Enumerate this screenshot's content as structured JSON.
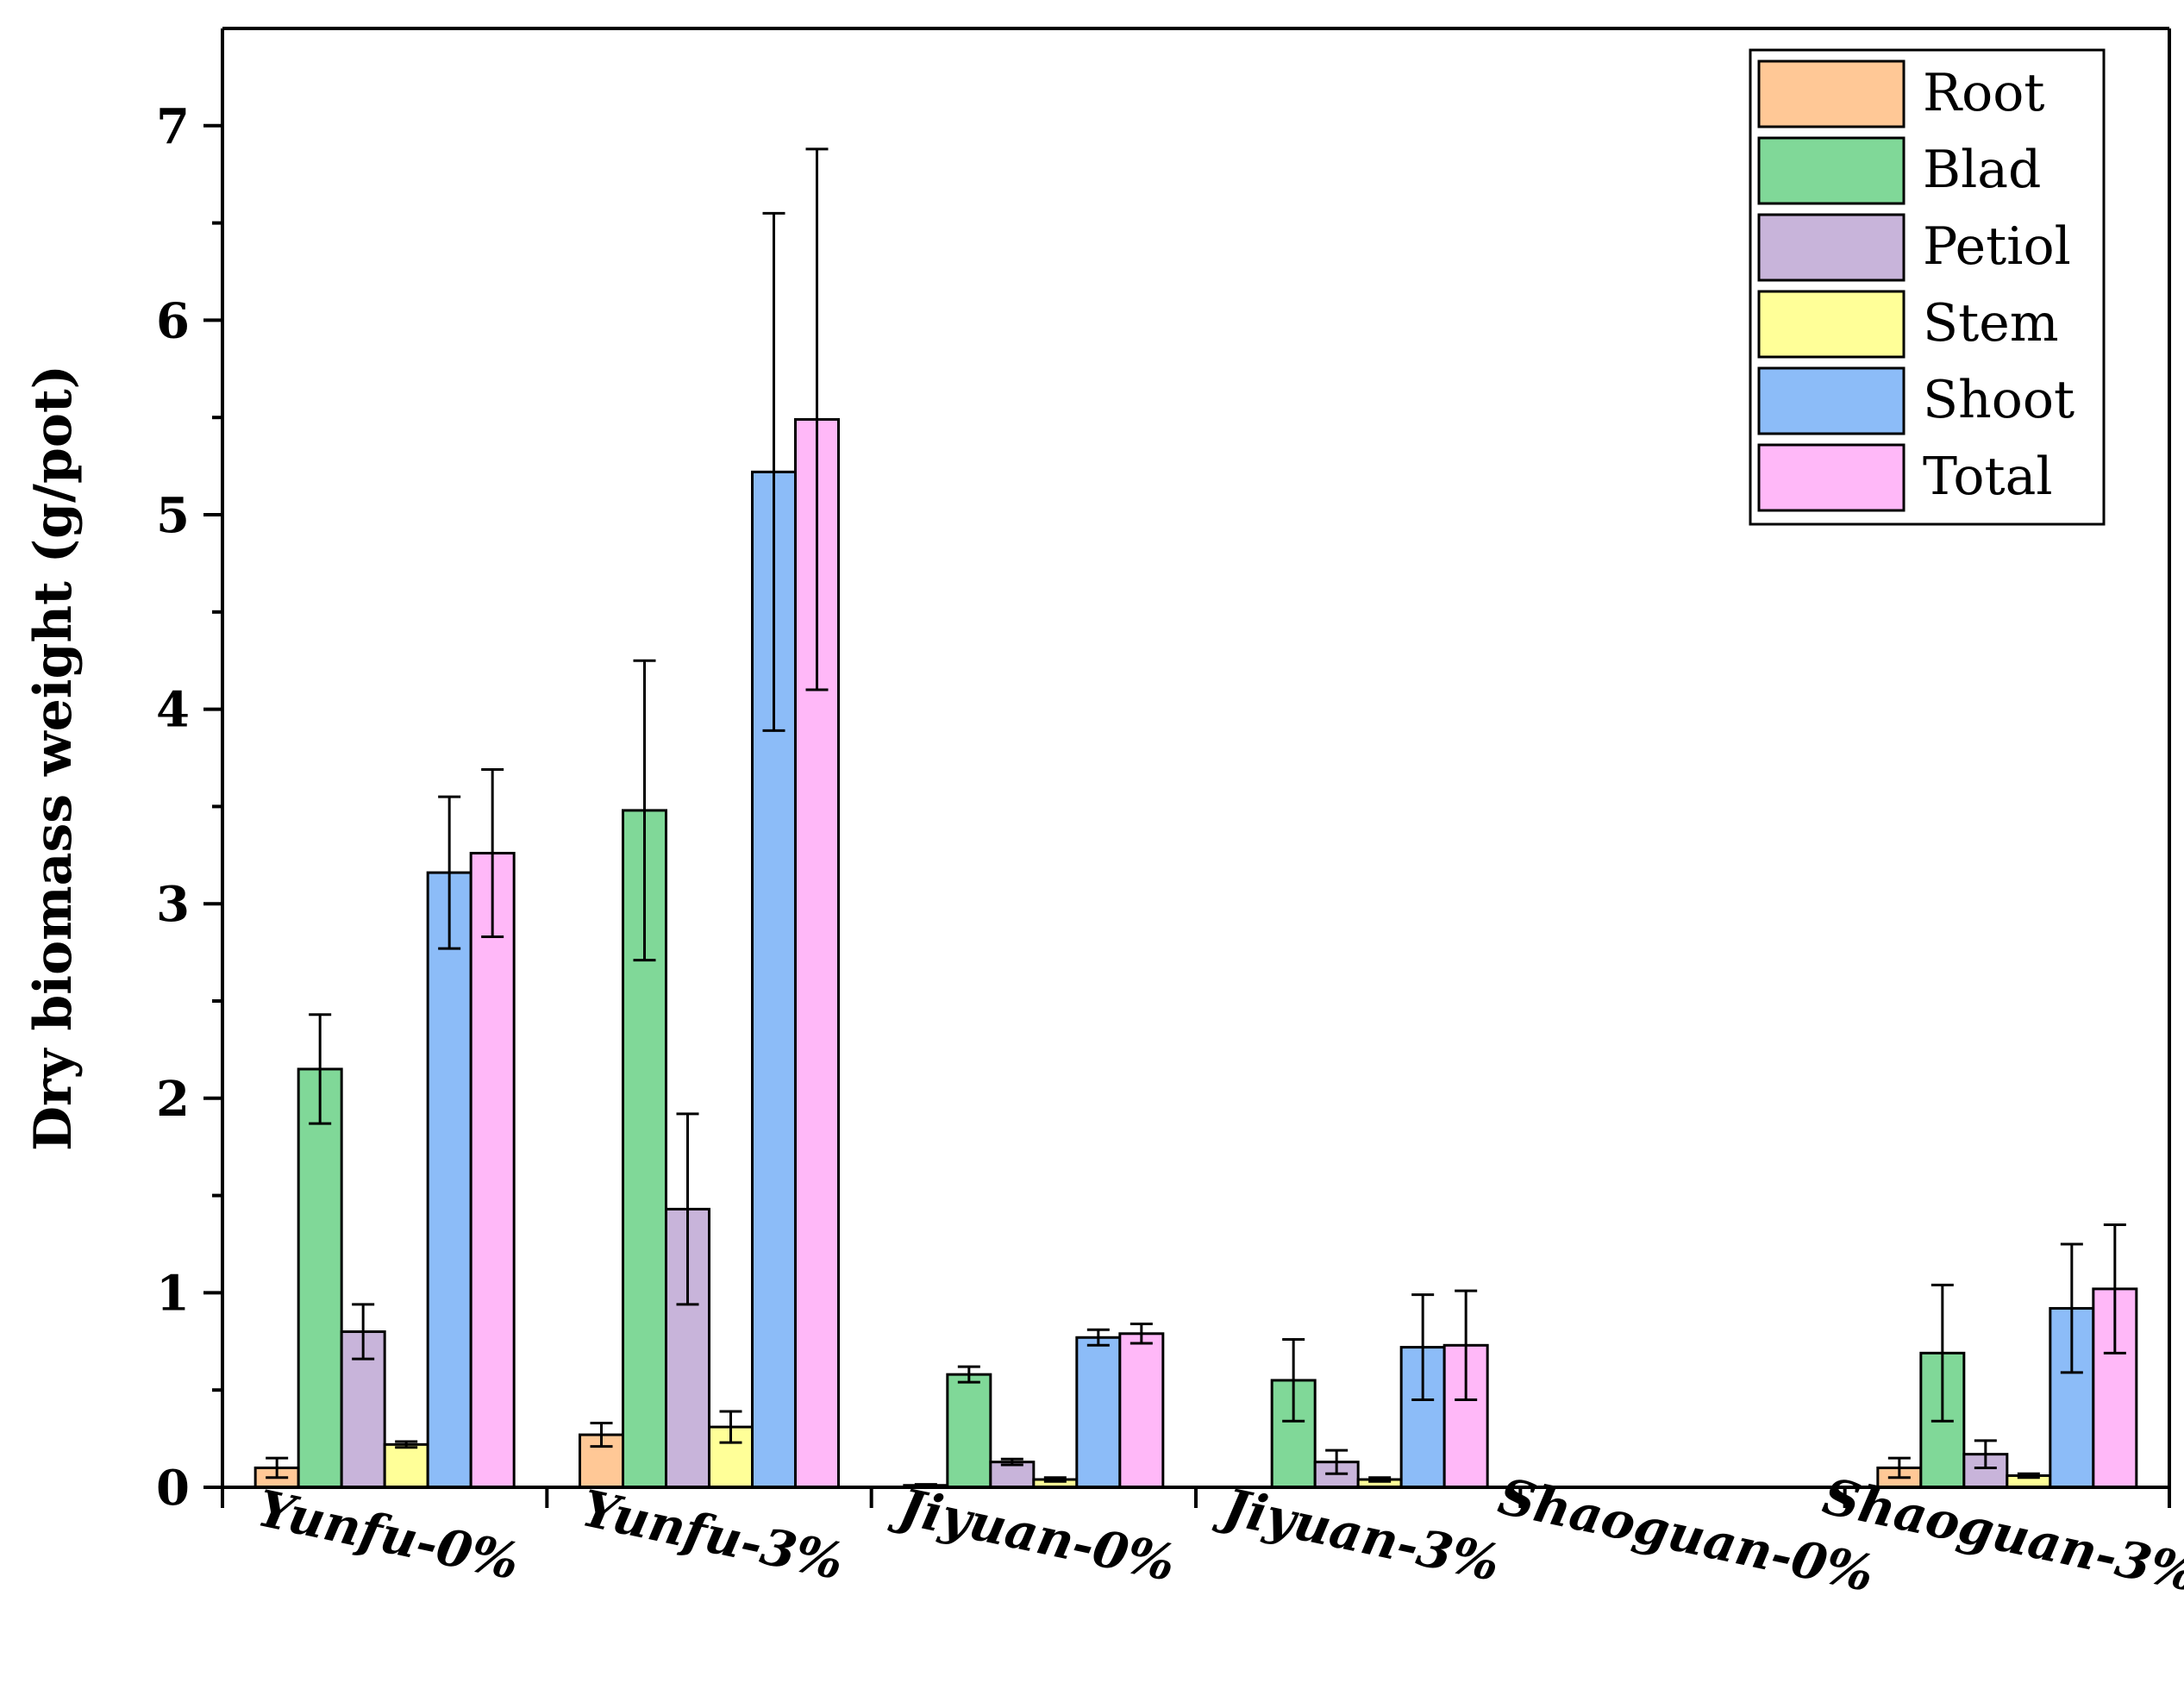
{
  "chart_data": {
    "type": "bar",
    "title": "",
    "xlabel": "",
    "ylabel": "Dry biomass weight (g/pot)",
    "ylim": [
      0,
      7.5
    ],
    "yticks": [
      "0",
      "1",
      "2",
      "3",
      "4",
      "5",
      "6",
      "7"
    ],
    "ytick_values": [
      0,
      1,
      2,
      3,
      4,
      5,
      6,
      7
    ],
    "grid": false,
    "legend_position": "top-right",
    "categories": [
      "Yunfu-0%",
      "Yunfu-3%",
      "Jiyuan-0%",
      "Jiyuan-3%",
      "Shaoguan-0%",
      "Shaoguan-3%"
    ],
    "series": [
      {
        "name": "Root",
        "color": "#ffc896",
        "values": [
          0.1,
          0.27,
          0.01,
          0.0,
          0.0,
          0.1
        ],
        "errors": [
          0.05,
          0.06,
          0.005,
          0.0,
          0.0,
          0.05
        ]
      },
      {
        "name": "Blad",
        "color": "#80d898",
        "values": [
          2.15,
          3.48,
          0.58,
          0.55,
          0.0,
          0.69
        ],
        "errors": [
          0.28,
          0.77,
          0.04,
          0.21,
          0.0,
          0.35
        ]
      },
      {
        "name": "Petiol",
        "color": "#c8b4da",
        "values": [
          0.8,
          1.43,
          0.13,
          0.13,
          0.0,
          0.17
        ],
        "errors": [
          0.14,
          0.49,
          0.015,
          0.06,
          0.0,
          0.07
        ]
      },
      {
        "name": "Stem",
        "color": "#ffff98",
        "values": [
          0.22,
          0.31,
          0.04,
          0.04,
          0.0,
          0.06
        ],
        "errors": [
          0.015,
          0.08,
          0.01,
          0.01,
          0.0,
          0.01
        ]
      },
      {
        "name": "Shoot",
        "color": "#8cbcf8",
        "values": [
          3.16,
          5.22,
          0.77,
          0.72,
          0.0,
          0.92
        ],
        "errors": [
          0.39,
          1.33,
          0.04,
          0.27,
          0.0,
          0.33
        ]
      },
      {
        "name": "Total",
        "color": "#ffb8f8",
        "values": [
          3.26,
          5.49,
          0.79,
          0.73,
          0.0,
          1.02
        ],
        "errors": [
          0.43,
          1.39,
          0.05,
          0.28,
          0.0,
          0.33
        ]
      }
    ]
  }
}
